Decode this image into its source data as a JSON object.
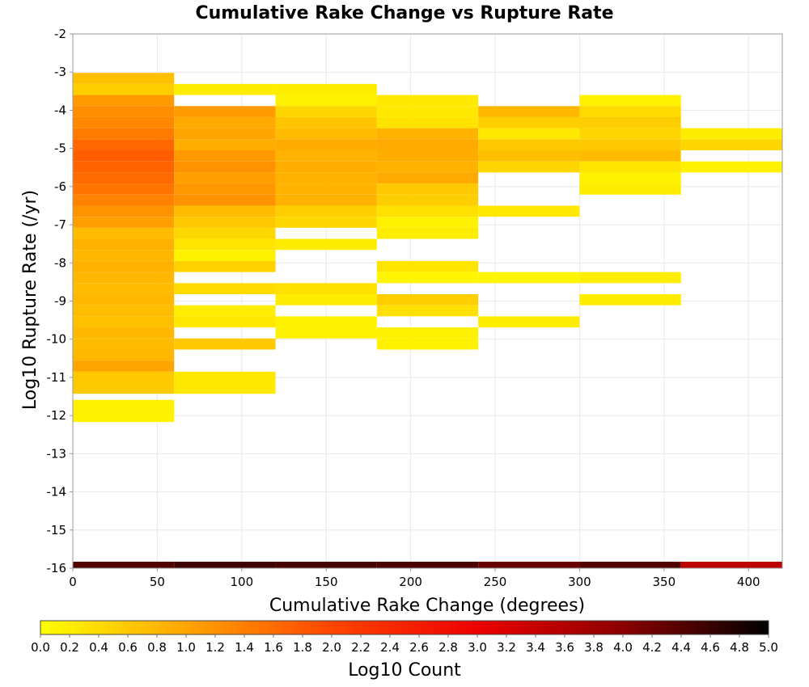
{
  "chart_data": {
    "type": "heatmap",
    "title": "Cumulative Rake Change vs Rupture Rate",
    "xlabel": "Cumulative Rake Change (degrees)",
    "ylabel": "Log10 Rupture Rate (/yr)",
    "xlim": [
      0,
      420
    ],
    "ylim": [
      -16,
      -2
    ],
    "x_ticks": [
      "0",
      "50",
      "100",
      "150",
      "200",
      "250",
      "300",
      "350",
      "400"
    ],
    "y_ticks": [
      "-2",
      "-3",
      "-4",
      "-5",
      "-6",
      "-7",
      "-8",
      "-9",
      "-10",
      "-11",
      "-12",
      "-13",
      "-14",
      "-15",
      "-16"
    ],
    "grid": true,
    "x_bin_width": 60,
    "y_bin_height": 0.29,
    "colorbar": {
      "label": "Log10 Count",
      "min": 0.0,
      "max": 5.0,
      "ticks": [
        "0.0",
        "0.2",
        "0.4",
        "0.6",
        "0.8",
        "1.0",
        "1.2",
        "1.4",
        "1.6",
        "1.8",
        "2.0",
        "2.2",
        "2.4",
        "2.6",
        "2.8",
        "3.0",
        "3.2",
        "3.4",
        "3.6",
        "3.8",
        "4.0",
        "4.2",
        "4.4",
        "4.6",
        "4.8",
        "5.0"
      ],
      "stops": [
        "#ffff00",
        "#ffa500",
        "#ff4500",
        "#ee0000",
        "#8b0000",
        "#000000"
      ]
    },
    "columns": [
      {
        "x": 0,
        "cells": [
          [
            -3.02,
            0.7
          ],
          [
            -3.31,
            0.55
          ],
          [
            -3.6,
            1.1
          ],
          [
            -3.89,
            1.25
          ],
          [
            -4.18,
            1.3
          ],
          [
            -4.47,
            1.45
          ],
          [
            -4.76,
            1.65
          ],
          [
            -5.05,
            1.75
          ],
          [
            -5.34,
            1.7
          ],
          [
            -5.63,
            1.6
          ],
          [
            -5.92,
            1.5
          ],
          [
            -6.21,
            1.35
          ],
          [
            -6.5,
            1.2
          ],
          [
            -6.79,
            1.05
          ],
          [
            -7.08,
            0.75
          ],
          [
            -7.37,
            0.85
          ],
          [
            -7.66,
            0.8
          ],
          [
            -7.95,
            0.85
          ],
          [
            -8.24,
            0.8
          ],
          [
            -8.53,
            0.75
          ],
          [
            -8.82,
            0.8
          ],
          [
            -9.11,
            0.75
          ],
          [
            -9.4,
            0.7
          ],
          [
            -9.69,
            0.8
          ],
          [
            -9.98,
            0.75
          ],
          [
            -10.27,
            0.8
          ],
          [
            -10.56,
            1.0
          ],
          [
            -10.85,
            0.6
          ],
          [
            -11.14,
            0.6
          ],
          [
            -11.59,
            0.15
          ],
          [
            -11.88,
            0.15
          ]
        ]
      },
      {
        "x": 60,
        "cells": [
          [
            -3.31,
            0.2
          ],
          [
            -3.89,
            1.1
          ],
          [
            -4.18,
            0.95
          ],
          [
            -4.47,
            1.0
          ],
          [
            -4.76,
            0.9
          ],
          [
            -5.05,
            1.1
          ],
          [
            -5.34,
            1.2
          ],
          [
            -5.63,
            1.05
          ],
          [
            -5.92,
            1.15
          ],
          [
            -6.21,
            1.2
          ],
          [
            -6.5,
            0.75
          ],
          [
            -6.79,
            0.6
          ],
          [
            -7.08,
            0.45
          ],
          [
            -7.37,
            0.3
          ],
          [
            -7.66,
            0.15
          ],
          [
            -7.95,
            0.5
          ],
          [
            -8.53,
            0.4
          ],
          [
            -9.11,
            0.2
          ],
          [
            -9.4,
            0.25
          ],
          [
            -9.98,
            0.6
          ],
          [
            -10.85,
            0.25
          ],
          [
            -11.14,
            0.25
          ]
        ]
      },
      {
        "x": 120,
        "cells": [
          [
            -3.31,
            0.2
          ],
          [
            -3.6,
            0.15
          ],
          [
            -3.89,
            0.45
          ],
          [
            -4.18,
            0.65
          ],
          [
            -4.47,
            0.75
          ],
          [
            -4.76,
            0.95
          ],
          [
            -5.05,
            0.85
          ],
          [
            -5.34,
            0.9
          ],
          [
            -5.63,
            0.85
          ],
          [
            -5.92,
            0.85
          ],
          [
            -6.21,
            0.85
          ],
          [
            -6.5,
            0.55
          ],
          [
            -6.79,
            0.45
          ],
          [
            -7.37,
            0.2
          ],
          [
            -8.53,
            0.35
          ],
          [
            -8.82,
            0.2
          ],
          [
            -9.4,
            0.15
          ],
          [
            -9.69,
            0.15
          ]
        ]
      },
      {
        "x": 180,
        "cells": [
          [
            -3.6,
            0.25
          ],
          [
            -3.89,
            0.25
          ],
          [
            -4.18,
            0.3
          ],
          [
            -4.47,
            0.85
          ],
          [
            -4.76,
            0.95
          ],
          [
            -5.05,
            0.9
          ],
          [
            -5.34,
            0.85
          ],
          [
            -5.63,
            0.95
          ],
          [
            -5.92,
            0.6
          ],
          [
            -6.21,
            0.55
          ],
          [
            -6.5,
            0.35
          ],
          [
            -6.79,
            0.15
          ],
          [
            -7.08,
            0.2
          ],
          [
            -7.95,
            0.3
          ],
          [
            -8.24,
            0.1
          ],
          [
            -8.82,
            0.55
          ],
          [
            -9.11,
            0.35
          ],
          [
            -9.69,
            0.15
          ],
          [
            -9.98,
            0.15
          ]
        ]
      },
      {
        "x": 240,
        "cells": [
          [
            -3.89,
            0.8
          ],
          [
            -4.18,
            0.55
          ],
          [
            -4.47,
            0.25
          ],
          [
            -4.76,
            0.6
          ],
          [
            -5.05,
            0.7
          ],
          [
            -5.34,
            0.45
          ],
          [
            -6.5,
            0.25
          ],
          [
            -8.24,
            0.1
          ],
          [
            -9.4,
            0.2
          ]
        ]
      },
      {
        "x": 300,
        "cells": [
          [
            -3.6,
            0.15
          ],
          [
            -3.89,
            0.4
          ],
          [
            -4.18,
            0.55
          ],
          [
            -4.47,
            0.45
          ],
          [
            -4.76,
            0.6
          ],
          [
            -5.05,
            0.75
          ],
          [
            -5.34,
            0.3
          ],
          [
            -5.63,
            0.15
          ],
          [
            -5.92,
            0.2
          ],
          [
            -8.24,
            0.2
          ],
          [
            -8.82,
            0.2
          ]
        ]
      },
      {
        "x": 360,
        "cells": [
          [
            -4.47,
            0.2
          ],
          [
            -4.76,
            0.45
          ],
          [
            -5.34,
            0.15
          ]
        ]
      }
    ],
    "bottom_row": {
      "y": -16.0,
      "values": [
        4.4,
        4.55,
        4.5,
        4.45,
        4.25,
        4.4,
        3.5
      ]
    }
  }
}
